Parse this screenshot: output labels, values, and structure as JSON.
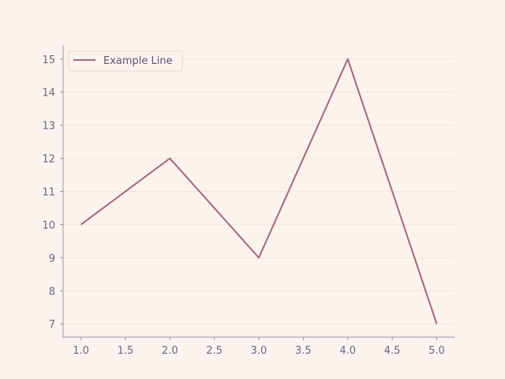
{
  "chart_data": {
    "type": "line",
    "title": "",
    "xlabel": "",
    "ylabel": "",
    "x": [
      1.0,
      2.0,
      3.0,
      4.0,
      5.0
    ],
    "series": [
      {
        "name": "Example Line",
        "values": [
          10,
          12,
          9,
          15,
          7
        ],
        "color": "#a8667a"
      }
    ],
    "xlim": [
      0.8,
      5.2
    ],
    "ylim": [
      6.6,
      15.4
    ],
    "xticks": [
      1.0,
      1.5,
      2.0,
      2.5,
      3.0,
      3.5,
      4.0,
      4.5,
      5.0
    ],
    "xtick_labels": [
      "1.0",
      "1.5",
      "2.0",
      "2.5",
      "3.0",
      "3.5",
      "4.0",
      "4.5",
      "5.0"
    ],
    "yticks": [
      7,
      8,
      9,
      10,
      11,
      12,
      13,
      14,
      15
    ],
    "ytick_labels": [
      "7",
      "8",
      "9",
      "10",
      "11",
      "12",
      "13",
      "14",
      "15"
    ],
    "grid": "horizontal",
    "legend": {
      "position": "top-left",
      "entries": [
        "Example Line"
      ]
    },
    "colors": {
      "background": "#faf3ee",
      "axis": "#9a94a8",
      "grid": "#f2e6d8",
      "tick_text": "#6e6585",
      "legend_border": "#e2dbd6"
    }
  }
}
